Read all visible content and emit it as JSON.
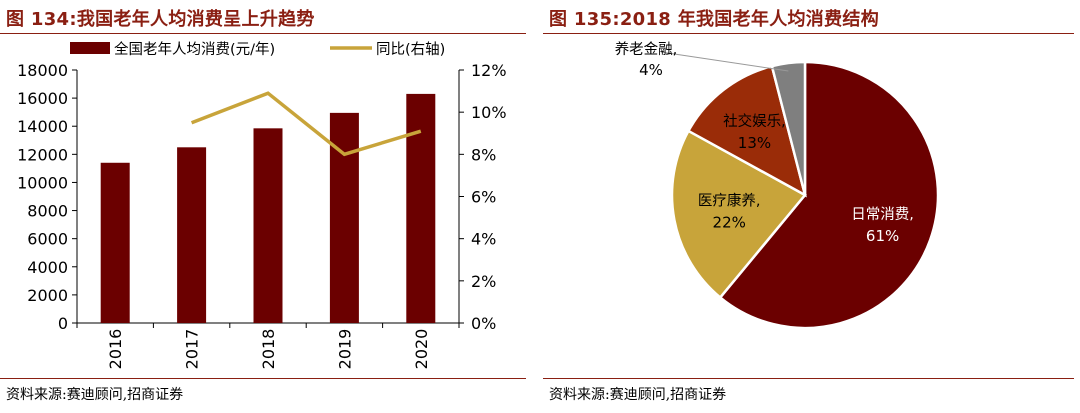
{
  "left_panel": {
    "title": "图 134:我国老年人均消费呈上升趋势",
    "source": "资料来源:赛迪顾问,招商证券"
  },
  "right_panel": {
    "title": "图 135:2018 年我国老年人均消费结构",
    "source": "资料来源:赛迪顾问,招商证券"
  },
  "colors": {
    "bar": "#6b0000",
    "line": "#c8a43a",
    "title": "#8a1f12"
  },
  "chart_data": [
    {
      "type": "bar",
      "title": "我国老年人均消费呈上升趋势",
      "categories": [
        "2016",
        "2017",
        "2018",
        "2019",
        "2020"
      ],
      "series": [
        {
          "name": "全国老年人均消费(元/年)",
          "axis": "left",
          "type": "bar",
          "values": [
            11400,
            12500,
            13850,
            14950,
            16300
          ]
        },
        {
          "name": "同比(右轴)",
          "axis": "right",
          "type": "line",
          "values": [
            null,
            9.5,
            10.9,
            8.0,
            9.1
          ]
        }
      ],
      "y_left": {
        "min": 0,
        "max": 18000,
        "step": 2000,
        "ticks": [
          "0",
          "2000",
          "4000",
          "6000",
          "8000",
          "10000",
          "12000",
          "14000",
          "16000",
          "18000"
        ]
      },
      "y_right": {
        "min": 0,
        "max": 12,
        "step": 2,
        "ticks": [
          "0%",
          "2%",
          "4%",
          "6%",
          "8%",
          "10%",
          "12%"
        ]
      },
      "legend": "top"
    },
    {
      "type": "pie",
      "title": "2018 年我国老年人均消费结构",
      "slices": [
        {
          "label": "日常消费,",
          "pct_label": "61%",
          "value": 61,
          "color": "#6b0000"
        },
        {
          "label": "医疗康养,",
          "pct_label": "22%",
          "value": 22,
          "color": "#c8a43a"
        },
        {
          "label": "社交娱乐,",
          "pct_label": "13%",
          "value": 13,
          "color": "#9a2c08"
        },
        {
          "label": "养老金融,",
          "pct_label": "4%",
          "value": 4,
          "color": "#7f7f7f"
        }
      ]
    }
  ]
}
